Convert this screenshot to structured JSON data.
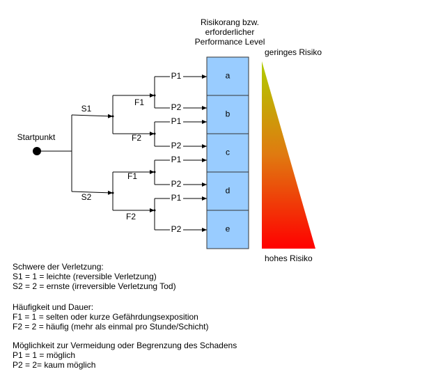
{
  "header": {
    "lines": [
      "Risikorang bzw.",
      "erforderlicher",
      "Performance Level"
    ]
  },
  "risk_labels": {
    "low": "geringes Risiko",
    "high": "hohes Risiko"
  },
  "start": "Startpunkt",
  "levels": [
    "a",
    "b",
    "c",
    "d",
    "e"
  ],
  "tree": [
    {
      "label": "S1",
      "children": [
        {
          "label": "F1",
          "children": [
            "P1",
            "P2"
          ]
        },
        {
          "label": "F2",
          "children": [
            "P1",
            "P2"
          ]
        }
      ]
    },
    {
      "label": "S2",
      "children": [
        {
          "label": "F1",
          "children": [
            "P1",
            "P2"
          ]
        },
        {
          "label": "F2",
          "children": [
            "P1",
            "P2"
          ]
        }
      ]
    }
  ],
  "legend": [
    {
      "heading": "Schwere der Verletzung:",
      "items": [
        "S1 = 1 = leichte (reversible Verletzung)",
        "S2 = 2 = ernste (irreversible Verletzung Tod)"
      ]
    },
    {
      "heading": "Häufigkeit und Dauer:",
      "items": [
        "F1 = 1 = selten oder kurze Gefährdungsexposition",
        "F2 = 2 = häufig (mehr als einmal pro Stunde/Schicht)"
      ]
    },
    {
      "heading": "Möglichkeit zur Vermeidung oder Begrenzung des Schadens",
      "items": [
        "P1 = 1 = möglich",
        "P2 = 2= kaum möglich"
      ]
    }
  ]
}
